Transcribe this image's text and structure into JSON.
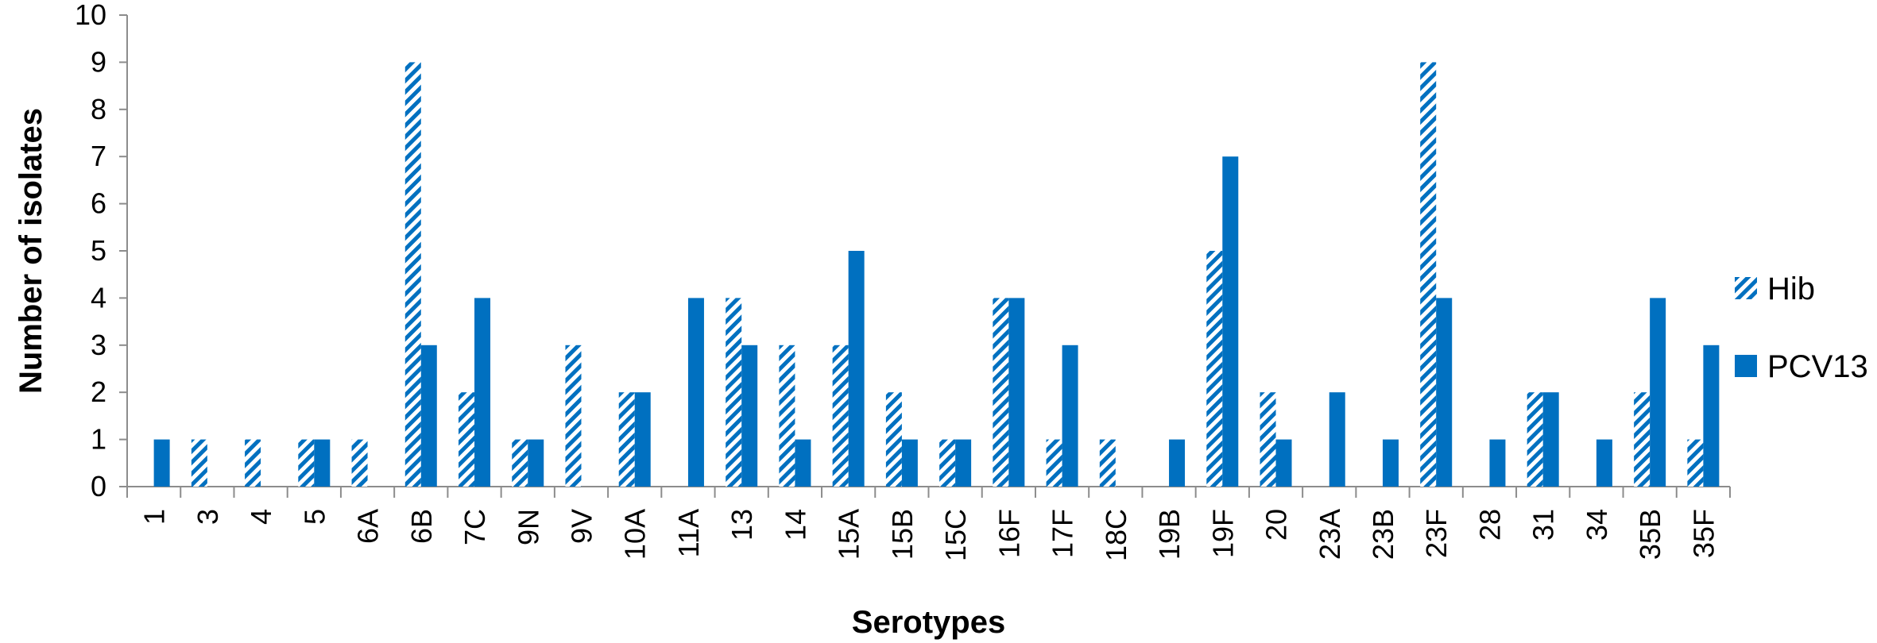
{
  "chart_data": {
    "type": "bar",
    "title": "",
    "xlabel": "Serotypes",
    "ylabel": "Number of isolates",
    "ylim": [
      0,
      10
    ],
    "yticks": [
      0,
      1,
      2,
      3,
      4,
      5,
      6,
      7,
      8,
      9,
      10
    ],
    "grid": false,
    "legend_position": "right",
    "categories": [
      "1",
      "3",
      "4",
      "5",
      "6A",
      "6B",
      "7C",
      "9N",
      "9V",
      "10A",
      "11A",
      "13",
      "14",
      "15A",
      "15B",
      "15C",
      "16F",
      "17F",
      "18C",
      "19B",
      "19F",
      "20",
      "23A",
      "23B",
      "23F",
      "28",
      "31",
      "34",
      "35B",
      "35F"
    ],
    "series": [
      {
        "name": "Hib",
        "pattern": "diagonal-hatch",
        "color": "#0070C0",
        "values": [
          0,
          1,
          1,
          1,
          1,
          9,
          2,
          1,
          3,
          2,
          0,
          4,
          3,
          3,
          2,
          1,
          4,
          1,
          1,
          0,
          5,
          2,
          0,
          0,
          9,
          0,
          2,
          0,
          2,
          1
        ]
      },
      {
        "name": "PCV13",
        "pattern": "solid",
        "color": "#0070C0",
        "values": [
          1,
          0,
          0,
          1,
          0,
          3,
          4,
          1,
          0,
          2,
          4,
          3,
          1,
          5,
          1,
          1,
          4,
          3,
          0,
          1,
          7,
          1,
          2,
          1,
          4,
          1,
          2,
          1,
          4,
          3
        ]
      }
    ]
  }
}
